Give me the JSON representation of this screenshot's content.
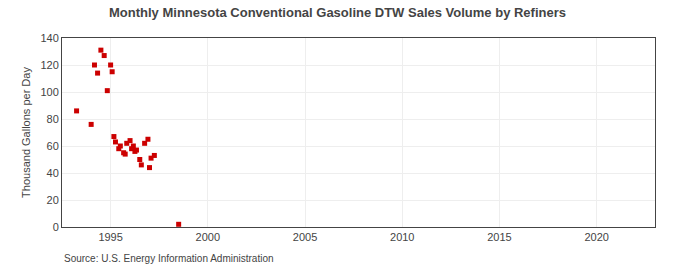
{
  "chart_data": {
    "type": "scatter",
    "title": "Monthly Minnesota Conventional Gasoline DTW Sales Volume by Refiners",
    "y_label": "Thousand Gallons per Day",
    "annotations": [
      "Source: U.S. Energy Information Administration"
    ],
    "x": [
      1993.25,
      1994.0,
      1994.17,
      1994.33,
      1994.5,
      1994.67,
      1994.83,
      1995.0,
      1995.08,
      1995.17,
      1995.25,
      1995.42,
      1995.5,
      1995.67,
      1995.75,
      1995.83,
      1996.0,
      1996.08,
      1996.17,
      1996.25,
      1996.33,
      1996.5,
      1996.58,
      1996.75,
      1996.92,
      1997.0,
      1997.08,
      1997.25,
      1998.5
    ],
    "values": [
      86,
      76,
      120,
      114,
      131,
      127,
      101,
      120,
      115,
      67,
      63,
      58,
      60,
      55,
      54,
      62,
      64,
      58,
      60,
      56,
      57,
      50,
      46,
      62,
      65,
      44,
      51,
      53,
      2
    ],
    "color": "#cc0000",
    "marker": "square",
    "xlim": [
      1992.5,
      2023
    ],
    "xticks": [
      1995,
      2000,
      2005,
      2010,
      2015,
      2020
    ],
    "ylim": [
      0,
      140
    ],
    "yticks": [
      0,
      20,
      40,
      60,
      80,
      100,
      120,
      140
    ],
    "grid": true
  }
}
